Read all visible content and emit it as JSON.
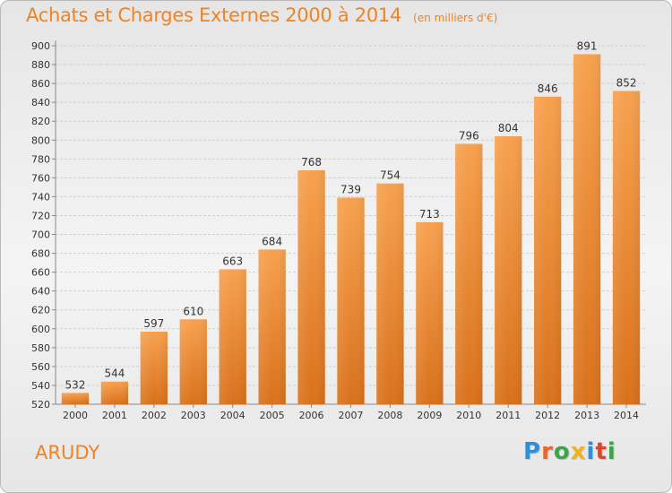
{
  "header": {
    "title": "Achats et Charges Externes 2000 à 2014",
    "subtitle": "(en milliers d'€)"
  },
  "footer": {
    "commune": "ARUDY",
    "brand": "Proxiti",
    "brand_letters": [
      {
        "char": "P",
        "color": "#2f8fd8"
      },
      {
        "char": "r",
        "color": "#e9672b"
      },
      {
        "char": "o",
        "color": "#3aa548"
      },
      {
        "char": "x",
        "color": "#f0b21f"
      },
      {
        "char": "i",
        "color": "#2f8fd8"
      },
      {
        "char": "t",
        "color": "#e0452b"
      },
      {
        "char": "i",
        "color": "#3aa548"
      }
    ]
  },
  "chart_data": {
    "type": "bar",
    "title": "Achats et Charges Externes 2000 à 2014",
    "subtitle": "(en milliers d'€)",
    "categories": [
      "2000",
      "2001",
      "2002",
      "2003",
      "2004",
      "2005",
      "2006",
      "2007",
      "2008",
      "2009",
      "2010",
      "2011",
      "2012",
      "2013",
      "2014"
    ],
    "values": [
      532,
      544,
      597,
      610,
      663,
      684,
      768,
      739,
      754,
      713,
      796,
      804,
      846,
      891,
      852
    ],
    "ylim": [
      520,
      900
    ],
    "yticks": [
      520,
      540,
      560,
      580,
      600,
      620,
      640,
      660,
      680,
      700,
      720,
      740,
      760,
      780,
      800,
      820,
      840,
      860,
      880,
      900
    ],
    "grid": true,
    "bar_color_top": "#f7a14f",
    "bar_color_bottom": "#d9711b",
    "axis_label_color": "#333333"
  }
}
